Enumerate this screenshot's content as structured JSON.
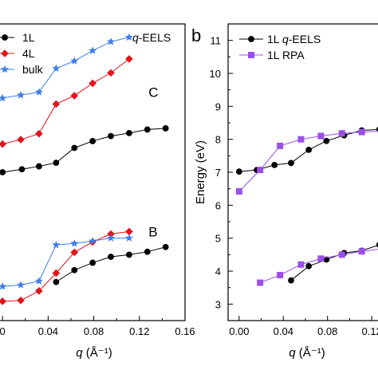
{
  "chart_data": [
    {
      "type": "line",
      "panel_label": "",
      "annotation": "q-EELS",
      "xlabel": "q (Å⁻¹)",
      "ylabel": "",
      "xlim": [
        -0.005,
        0.16
      ],
      "ylim": [
        0,
        10
      ],
      "x_ticks": [
        "0",
        "0.04",
        "0.08",
        "0.12",
        "0.16"
      ],
      "x_tick_values": [
        0,
        0.04,
        0.08,
        0.12,
        0.16
      ],
      "grid": false,
      "legend_position": "top-left",
      "labels": [
        {
          "text": "C",
          "x": 0.128,
          "y": 7.7
        },
        {
          "text": "B",
          "x": 0.128,
          "y": 3.0
        }
      ],
      "series": [
        {
          "name": "1L",
          "group": "C",
          "color": "#000000",
          "marker": "circle",
          "x": [
            0.0,
            0.017,
            0.032,
            0.047,
            0.063,
            0.079,
            0.095,
            0.111,
            0.127,
            0.143
          ],
          "y": [
            5.0,
            5.1,
            5.2,
            5.32,
            5.82,
            6.05,
            6.22,
            6.32,
            6.44,
            6.48
          ]
        },
        {
          "name": "4L",
          "group": "C",
          "color": "#e3121b",
          "marker": "diamond",
          "x": [
            0.0,
            0.016,
            0.032,
            0.047,
            0.063,
            0.079,
            0.095,
            0.111
          ],
          "y": [
            5.95,
            6.1,
            6.3,
            7.3,
            7.58,
            8.0,
            8.35,
            8.82
          ]
        },
        {
          "name": "bulk",
          "group": "C",
          "color": "#3f7ee8",
          "marker": "star",
          "x": [
            0.0,
            0.016,
            0.032,
            0.047,
            0.063,
            0.079,
            0.095,
            0.111
          ],
          "y": [
            7.5,
            7.6,
            7.7,
            8.5,
            8.75,
            9.1,
            9.4,
            9.55
          ]
        },
        {
          "name": "1L",
          "group": "B",
          "color": "#000000",
          "marker": "circle",
          "x": [
            0.047,
            0.063,
            0.079,
            0.095,
            0.111,
            0.127,
            0.143
          ],
          "y": [
            1.3,
            1.7,
            1.95,
            2.15,
            2.22,
            2.32,
            2.48
          ]
        },
        {
          "name": "4L",
          "group": "B",
          "color": "#e3121b",
          "marker": "diamond",
          "x": [
            0.0,
            0.016,
            0.032,
            0.047,
            0.063,
            0.079,
            0.095,
            0.111
          ],
          "y": [
            0.65,
            0.68,
            1.0,
            1.6,
            2.3,
            2.65,
            2.92,
            3.0
          ]
        },
        {
          "name": "bulk",
          "group": "B",
          "color": "#3f7ee8",
          "marker": "star",
          "x": [
            0.0,
            0.016,
            0.032,
            0.047,
            0.063,
            0.079,
            0.095,
            0.111
          ],
          "y": [
            1.15,
            1.2,
            1.33,
            2.55,
            2.6,
            2.68,
            2.78,
            2.78
          ]
        }
      ]
    },
    {
      "type": "line",
      "panel_label": "b",
      "annotation": "",
      "xlabel": "q (Å⁻¹)",
      "ylabel": "Energy (eV)",
      "xlim": [
        -0.01,
        0.13
      ],
      "ylim": [
        2.5,
        11.5
      ],
      "x_ticks": [
        "0.00",
        "0.04",
        "0.08",
        "0.12"
      ],
      "x_tick_values": [
        0,
        0.04,
        0.08,
        0.12
      ],
      "y_ticks": [
        "3",
        "4",
        "5",
        "6",
        "7",
        "8",
        "9",
        "10",
        "11"
      ],
      "y_tick_values": [
        3,
        4,
        5,
        6,
        7,
        8,
        9,
        10,
        11
      ],
      "grid": false,
      "legend_position": "top-left",
      "labels": [],
      "series": [
        {
          "name": "1L q-EELS",
          "legend": true,
          "color": "#000000",
          "marker": "circle",
          "x": [
            0.0,
            0.016,
            0.032,
            0.047,
            0.063,
            0.079,
            0.095,
            0.111,
            0.127
          ],
          "y": [
            7.02,
            7.07,
            7.22,
            7.28,
            7.68,
            7.95,
            8.12,
            8.27,
            8.3
          ]
        },
        {
          "name": "1L RPA",
          "legend": true,
          "color": "#9b4fe8",
          "marker": "square",
          "x": [
            0.0,
            0.019,
            0.037,
            0.056,
            0.074,
            0.093,
            0.111,
            0.13
          ],
          "y": [
            6.42,
            7.07,
            7.8,
            8.0,
            8.1,
            8.18,
            8.22,
            8.25
          ]
        },
        {
          "name": "1L q-EELS",
          "legend": false,
          "color": "#000000",
          "marker": "circle",
          "x": [
            0.047,
            0.063,
            0.079,
            0.095,
            0.111,
            0.127
          ],
          "y": [
            3.72,
            4.15,
            4.35,
            4.55,
            4.62,
            4.8
          ]
        },
        {
          "name": "1L RPA",
          "legend": false,
          "color": "#9b4fe8",
          "marker": "square",
          "x": [
            0.019,
            0.037,
            0.056,
            0.074,
            0.093,
            0.111,
            0.13
          ],
          "y": [
            3.65,
            3.88,
            4.2,
            4.38,
            4.5,
            4.6,
            4.68
          ]
        }
      ]
    }
  ]
}
